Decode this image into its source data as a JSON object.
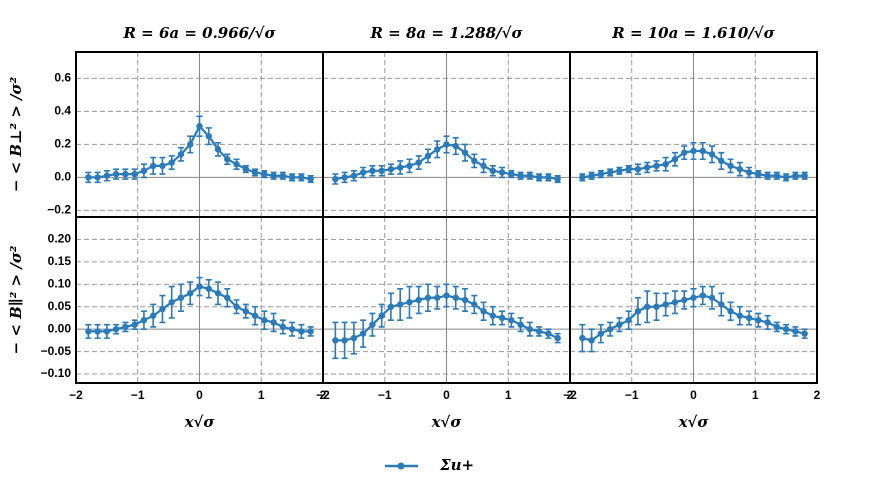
{
  "chart_data": [
    {
      "type": "line",
      "title": "R = 6a = 0.966/√σ",
      "ylabel": "− < B⊥² > /σ²",
      "x": [
        -1.8,
        -1.65,
        -1.5,
        -1.35,
        -1.2,
        -1.05,
        -0.9,
        -0.75,
        -0.6,
        -0.45,
        -0.3,
        -0.15,
        0,
        0.15,
        0.3,
        0.45,
        0.6,
        0.75,
        0.9,
        1.05,
        1.2,
        1.35,
        1.5,
        1.65,
        1.8
      ],
      "series": [
        {
          "color": "#2b7bba",
          "values": [
            0,
            0,
            0.01,
            0.02,
            0.02,
            0.02,
            0.04,
            0.07,
            0.07,
            0.09,
            0.14,
            0.2,
            0.31,
            0.25,
            0.17,
            0.11,
            0.08,
            0.05,
            0.03,
            0.02,
            0.01,
            0.01,
            0,
            0,
            -0.01
          ],
          "errors": [
            0.03,
            0.03,
            0.03,
            0.03,
            0.03,
            0.03,
            0.04,
            0.05,
            0.05,
            0.04,
            0.04,
            0.05,
            0.06,
            0.05,
            0.04,
            0.03,
            0.03,
            0.02,
            0.02,
            0.02,
            0.02,
            0.02,
            0.02,
            0.02,
            0.02
          ]
        }
      ],
      "xlim": [
        -2,
        2
      ],
      "xticks": [
        {
          "value": -2,
          "label": "−2"
        },
        {
          "value": -1,
          "label": "−1"
        },
        0,
        1,
        2
      ],
      "ylim": [
        -0.24,
        0.76
      ],
      "yticks": [
        {
          "value": -0.2,
          "label": "−0.2"
        },
        {
          "value": 0,
          "label": "0.0"
        },
        0.2,
        0.4,
        0.6
      ],
      "grid": true
    },
    {
      "type": "line",
      "title": "R = 8a = 1.288/√σ",
      "x": [
        -1.8,
        -1.65,
        -1.5,
        -1.35,
        -1.2,
        -1.05,
        -0.9,
        -0.75,
        -0.6,
        -0.45,
        -0.3,
        -0.15,
        0,
        0.15,
        0.3,
        0.45,
        0.6,
        0.75,
        0.9,
        1.05,
        1.2,
        1.35,
        1.5,
        1.65,
        1.8
      ],
      "series": [
        {
          "color": "#2b7bba",
          "values": [
            -0.01,
            0,
            0.01,
            0.03,
            0.04,
            0.04,
            0.05,
            0.06,
            0.07,
            0.09,
            0.13,
            0.17,
            0.2,
            0.19,
            0.15,
            0.1,
            0.07,
            0.04,
            0.03,
            0.02,
            0.01,
            0.01,
            0,
            0,
            -0.01
          ],
          "errors": [
            0.03,
            0.03,
            0.03,
            0.03,
            0.03,
            0.03,
            0.03,
            0.04,
            0.04,
            0.04,
            0.04,
            0.05,
            0.05,
            0.05,
            0.05,
            0.04,
            0.04,
            0.03,
            0.03,
            0.02,
            0.02,
            0.02,
            0.02,
            0.02,
            0.02
          ]
        }
      ],
      "xlim": [
        -2,
        2
      ],
      "xticks": [
        {
          "value": -2,
          "label": "−2"
        },
        {
          "value": -1,
          "label": "−1"
        },
        0,
        1,
        2
      ],
      "ylim": [
        -0.24,
        0.76
      ],
      "yticks": [
        {
          "value": -0.2,
          "label": "−0.2"
        },
        {
          "value": 0,
          "label": "0.0"
        },
        0.2,
        0.4,
        0.6
      ],
      "grid": true
    },
    {
      "type": "line",
      "title": "R = 10a = 1.610/√σ",
      "x": [
        -1.8,
        -1.65,
        -1.5,
        -1.35,
        -1.2,
        -1.05,
        -0.9,
        -0.75,
        -0.6,
        -0.45,
        -0.3,
        -0.15,
        0,
        0.15,
        0.3,
        0.45,
        0.6,
        0.75,
        0.9,
        1.05,
        1.2,
        1.35,
        1.5,
        1.65,
        1.8
      ],
      "series": [
        {
          "color": "#2b7bba",
          "values": [
            0,
            0.01,
            0.02,
            0.03,
            0.04,
            0.05,
            0.05,
            0.06,
            0.07,
            0.08,
            0.11,
            0.15,
            0.16,
            0.16,
            0.14,
            0.1,
            0.07,
            0.05,
            0.03,
            0.02,
            0.01,
            0.01,
            0,
            0.01,
            0.01
          ],
          "errors": [
            0.02,
            0.02,
            0.02,
            0.02,
            0.02,
            0.02,
            0.03,
            0.03,
            0.03,
            0.04,
            0.04,
            0.04,
            0.05,
            0.05,
            0.05,
            0.05,
            0.04,
            0.04,
            0.03,
            0.02,
            0.02,
            0.02,
            0.02,
            0.02,
            0.02
          ]
        }
      ],
      "xlim": [
        -2,
        2
      ],
      "xticks": [
        {
          "value": -2,
          "label": "−2"
        },
        {
          "value": -1,
          "label": "−1"
        },
        0,
        1,
        2
      ],
      "ylim": [
        -0.24,
        0.76
      ],
      "yticks": [
        {
          "value": -0.2,
          "label": "−0.2"
        },
        {
          "value": 0,
          "label": "0.0"
        },
        0.2,
        0.4,
        0.6
      ],
      "grid": true
    },
    {
      "type": "line",
      "ylabel": "− < B∥² > /σ²",
      "xlabel": "x√σ",
      "x": [
        -1.8,
        -1.65,
        -1.5,
        -1.35,
        -1.2,
        -1.05,
        -0.9,
        -0.75,
        -0.6,
        -0.45,
        -0.3,
        -0.15,
        0,
        0.15,
        0.3,
        0.45,
        0.6,
        0.75,
        0.9,
        1.05,
        1.2,
        1.35,
        1.5,
        1.65,
        1.8
      ],
      "series": [
        {
          "color": "#2b7bba",
          "values": [
            -0.005,
            -0.005,
            -0.005,
            0,
            0.005,
            0.01,
            0.02,
            0.03,
            0.045,
            0.06,
            0.07,
            0.08,
            0.095,
            0.09,
            0.08,
            0.07,
            0.05,
            0.04,
            0.03,
            0.02,
            0.015,
            0.005,
            0,
            -0.005,
            -0.005
          ],
          "errors": [
            0.015,
            0.015,
            0.015,
            0.01,
            0.01,
            0.01,
            0.02,
            0.025,
            0.03,
            0.035,
            0.03,
            0.025,
            0.02,
            0.02,
            0.025,
            0.02,
            0.015,
            0.015,
            0.02,
            0.02,
            0.02,
            0.015,
            0.015,
            0.015,
            0.01
          ]
        }
      ],
      "xlim": [
        -2,
        2
      ],
      "xticks": [
        {
          "value": -2,
          "label": "−2"
        },
        {
          "value": -1,
          "label": "−1"
        },
        0,
        1,
        2
      ],
      "ylim": [
        -0.12,
        0.25
      ],
      "yticks": [
        {
          "value": -0.1,
          "label": "−0.10"
        },
        {
          "value": -0.05,
          "label": "−0.05"
        },
        {
          "value": 0,
          "label": "0.00"
        },
        {
          "value": 0.05,
          "label": "0.05"
        },
        {
          "value": 0.1,
          "label": "0.10"
        },
        {
          "value": 0.15,
          "label": "0.15"
        },
        {
          "value": 0.2,
          "label": "0.20"
        }
      ],
      "grid": true
    },
    {
      "type": "line",
      "xlabel": "x√σ",
      "x": [
        -1.8,
        -1.65,
        -1.5,
        -1.35,
        -1.2,
        -1.05,
        -0.9,
        -0.75,
        -0.6,
        -0.45,
        -0.3,
        -0.15,
        0,
        0.15,
        0.3,
        0.45,
        0.6,
        0.75,
        0.9,
        1.05,
        1.2,
        1.35,
        1.5,
        1.65,
        1.8
      ],
      "series": [
        {
          "color": "#2b7bba",
          "values": [
            -0.025,
            -0.025,
            -0.02,
            -0.01,
            0.01,
            0.03,
            0.05,
            0.055,
            0.06,
            0.065,
            0.07,
            0.07,
            0.075,
            0.07,
            0.065,
            0.055,
            0.04,
            0.03,
            0.025,
            0.02,
            0.01,
            0,
            -0.005,
            -0.01,
            -0.02
          ],
          "errors": [
            0.04,
            0.04,
            0.035,
            0.03,
            0.025,
            0.025,
            0.03,
            0.035,
            0.035,
            0.03,
            0.03,
            0.025,
            0.025,
            0.025,
            0.025,
            0.02,
            0.02,
            0.02,
            0.015,
            0.015,
            0.015,
            0.015,
            0.01,
            0.01,
            0.01
          ]
        }
      ],
      "xlim": [
        -2,
        2
      ],
      "xticks": [
        {
          "value": -2,
          "label": "−2"
        },
        {
          "value": -1,
          "label": "−1"
        },
        0,
        1,
        2
      ],
      "ylim": [
        -0.12,
        0.25
      ],
      "yticks": [
        {
          "value": -0.1,
          "label": "−0.10"
        },
        {
          "value": -0.05,
          "label": "−0.05"
        },
        {
          "value": 0,
          "label": "0.00"
        },
        {
          "value": 0.05,
          "label": "0.05"
        },
        {
          "value": 0.1,
          "label": "0.10"
        },
        {
          "value": 0.15,
          "label": "0.15"
        },
        {
          "value": 0.2,
          "label": "0.20"
        }
      ],
      "grid": true
    },
    {
      "type": "line",
      "xlabel": "x√σ",
      "x": [
        -1.8,
        -1.65,
        -1.5,
        -1.35,
        -1.2,
        -1.05,
        -0.9,
        -0.75,
        -0.6,
        -0.45,
        -0.3,
        -0.15,
        0,
        0.15,
        0.3,
        0.45,
        0.6,
        0.75,
        0.9,
        1.05,
        1.2,
        1.35,
        1.5,
        1.65,
        1.8
      ],
      "series": [
        {
          "color": "#2b7bba",
          "values": [
            -0.02,
            -0.025,
            -0.01,
            0,
            0.01,
            0.02,
            0.04,
            0.05,
            0.05,
            0.055,
            0.06,
            0.065,
            0.07,
            0.075,
            0.07,
            0.055,
            0.04,
            0.03,
            0.025,
            0.02,
            0.015,
            0.005,
            0,
            -0.005,
            -0.01
          ],
          "errors": [
            0.03,
            0.025,
            0.02,
            0.015,
            0.015,
            0.02,
            0.03,
            0.035,
            0.03,
            0.025,
            0.025,
            0.02,
            0.02,
            0.02,
            0.025,
            0.025,
            0.02,
            0.02,
            0.015,
            0.015,
            0.015,
            0.01,
            0.01,
            0.01,
            0.01
          ]
        }
      ],
      "xlim": [
        -2,
        2
      ],
      "xticks": [
        {
          "value": -2,
          "label": "−2"
        },
        {
          "value": -1,
          "label": "−1"
        },
        0,
        1,
        2
      ],
      "ylim": [
        -0.12,
        0.25
      ],
      "yticks": [
        {
          "value": -0.1,
          "label": "−0.10"
        },
        {
          "value": -0.05,
          "label": "−0.05"
        },
        {
          "value": 0,
          "label": "0.00"
        },
        {
          "value": 0.05,
          "label": "0.05"
        },
        {
          "value": 0.1,
          "label": "0.10"
        },
        {
          "value": 0.15,
          "label": "0.15"
        },
        {
          "value": 0.2,
          "label": "0.20"
        }
      ],
      "grid": true
    }
  ],
  "legend": {
    "label": "Σu+",
    "color": "#2b7bba"
  }
}
